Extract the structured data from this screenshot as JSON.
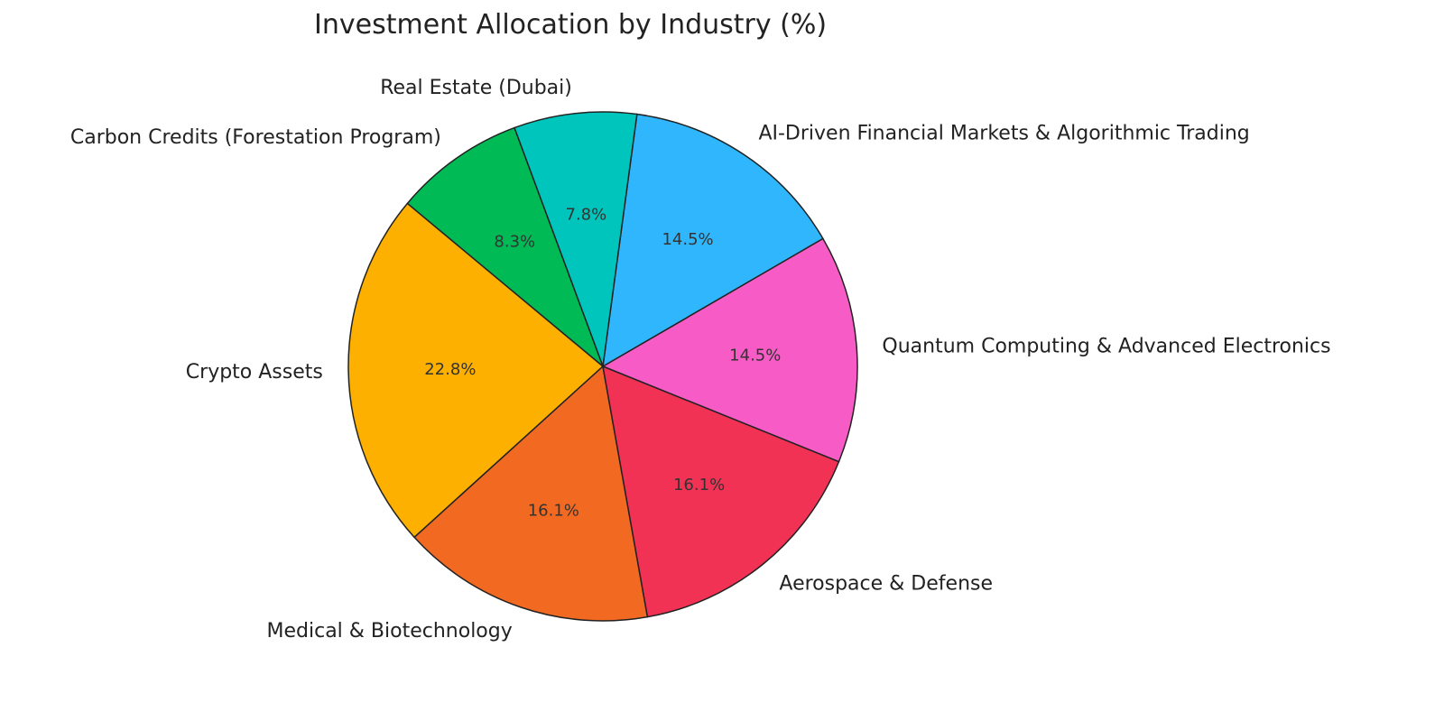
{
  "chart_data": {
    "type": "pie",
    "title": "Investment Allocation by Industry (%)",
    "start_angle_deg": -22,
    "direction": "counterclockwise",
    "slices": [
      {
        "label": "Quantum Computing & Advanced Electronics",
        "value": 14.5,
        "pct_label": "14.5%",
        "color": "#f75cc6"
      },
      {
        "label": "AI-Driven Financial Markets & Algorithmic Trading",
        "value": 14.5,
        "pct_label": "14.5%",
        "color": "#2fb6fc"
      },
      {
        "label": "Real Estate (Dubai)",
        "value": 7.8,
        "pct_label": "7.8%",
        "color": "#00c5bd"
      },
      {
        "label": "Carbon Credits (Forestation Program)",
        "value": 8.3,
        "pct_label": "8.3%",
        "color": "#00bb55"
      },
      {
        "label": "Crypto Assets",
        "value": 22.8,
        "pct_label": "22.8%",
        "color": "#fdb000"
      },
      {
        "label": "Medical & Biotechnology",
        "value": 16.1,
        "pct_label": "16.1%",
        "color": "#f26a21"
      },
      {
        "label": "Aerospace & Defense",
        "value": 16.1,
        "pct_label": "16.1%",
        "color": "#f23255"
      }
    ]
  }
}
